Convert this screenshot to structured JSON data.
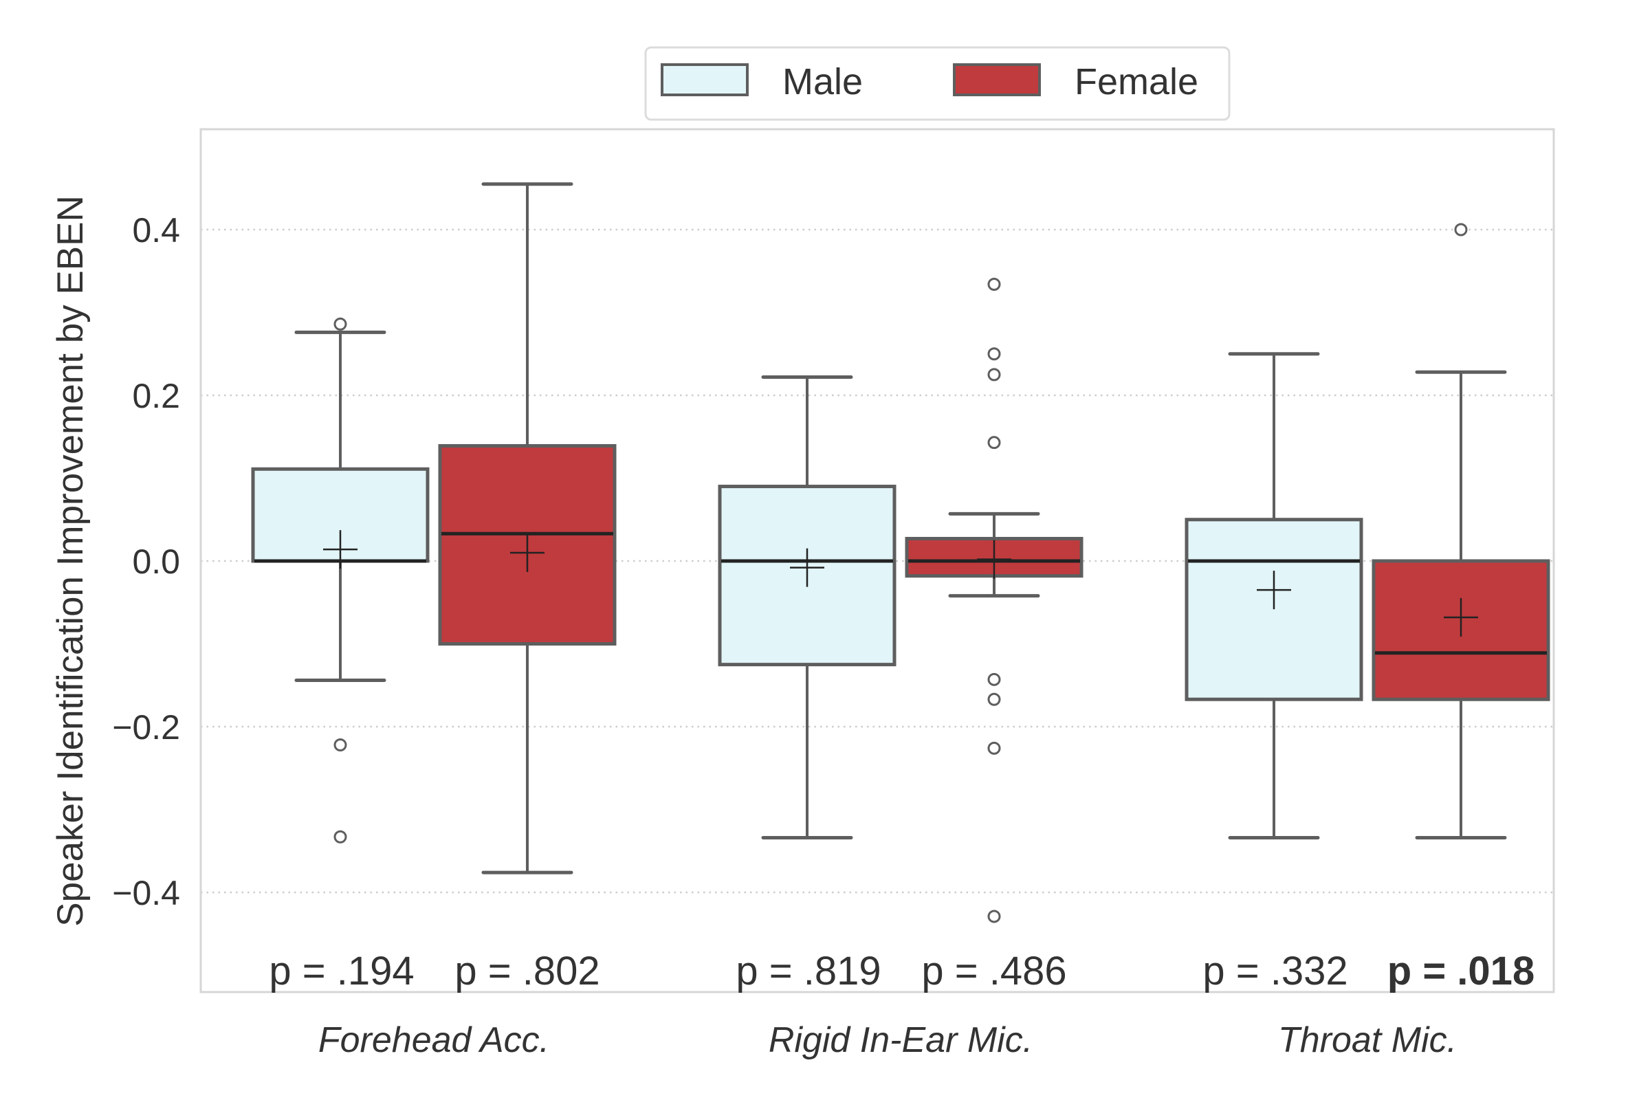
{
  "chart_data": {
    "type": "box",
    "title": "",
    "xlabel": "",
    "ylabel": "Speaker Identification Improvement by EBEN",
    "ylim": [
      -0.52,
      0.52
    ],
    "yticks": [
      0.4,
      0.2,
      0.0,
      -0.2,
      -0.4
    ],
    "ytick_labels": [
      "0.4",
      "0.2",
      "0.0",
      "−0.2",
      "−0.4"
    ],
    "grid": "horizontal-dotted",
    "legend_position": "top-center-outside",
    "categories": [
      "Forehead Acc.",
      "Rigid In-Ear Mic.",
      "Throat Mic."
    ],
    "series": [
      {
        "name": "Male",
        "color": "#e2f5f8",
        "boxes": [
          {
            "whisker_low": -0.144,
            "q1": 0.0,
            "median": 0.0,
            "q3": 0.111,
            "whisker_high": 0.276,
            "mean": 0.014,
            "outliers": [
              0.286,
              -0.222,
              -0.333
            ]
          },
          {
            "whisker_low": -0.334,
            "q1": -0.125,
            "median": 0.0,
            "q3": 0.09,
            "whisker_high": 0.222,
            "mean": -0.008,
            "outliers": []
          },
          {
            "whisker_low": -0.334,
            "q1": -0.167,
            "median": 0.0,
            "q3": 0.05,
            "whisker_high": 0.25,
            "mean": -0.035,
            "outliers": []
          }
        ],
        "p_values": [
          "p = .194",
          "p = .819",
          "p = .332"
        ],
        "p_significant": [
          false,
          false,
          false
        ]
      },
      {
        "name": "Female",
        "color": "#c03b3e",
        "boxes": [
          {
            "whisker_low": -0.376,
            "q1": -0.1,
            "median": 0.033,
            "q3": 0.139,
            "whisker_high": 0.455,
            "mean": 0.01,
            "outliers": []
          },
          {
            "whisker_low": -0.042,
            "q1": -0.018,
            "median": 0.0,
            "q3": 0.027,
            "whisker_high": 0.057,
            "mean": 0.002,
            "outliers": [
              0.334,
              0.25,
              0.225,
              0.143,
              -0.143,
              -0.167,
              -0.226,
              -0.429
            ]
          },
          {
            "whisker_low": -0.334,
            "q1": -0.167,
            "median": -0.111,
            "q3": 0.0,
            "whisker_high": 0.228,
            "mean": -0.068,
            "outliers": [
              0.4
            ]
          }
        ],
        "p_values": [
          "p = .802",
          "p = .486",
          "p = .018"
        ],
        "p_significant": [
          false,
          false,
          true
        ]
      }
    ]
  },
  "colors": {
    "edge": "#5e5e5e",
    "median": "#222222",
    "grid": "#cccccc",
    "frame": "#d6d6d6",
    "text": "#333333"
  }
}
